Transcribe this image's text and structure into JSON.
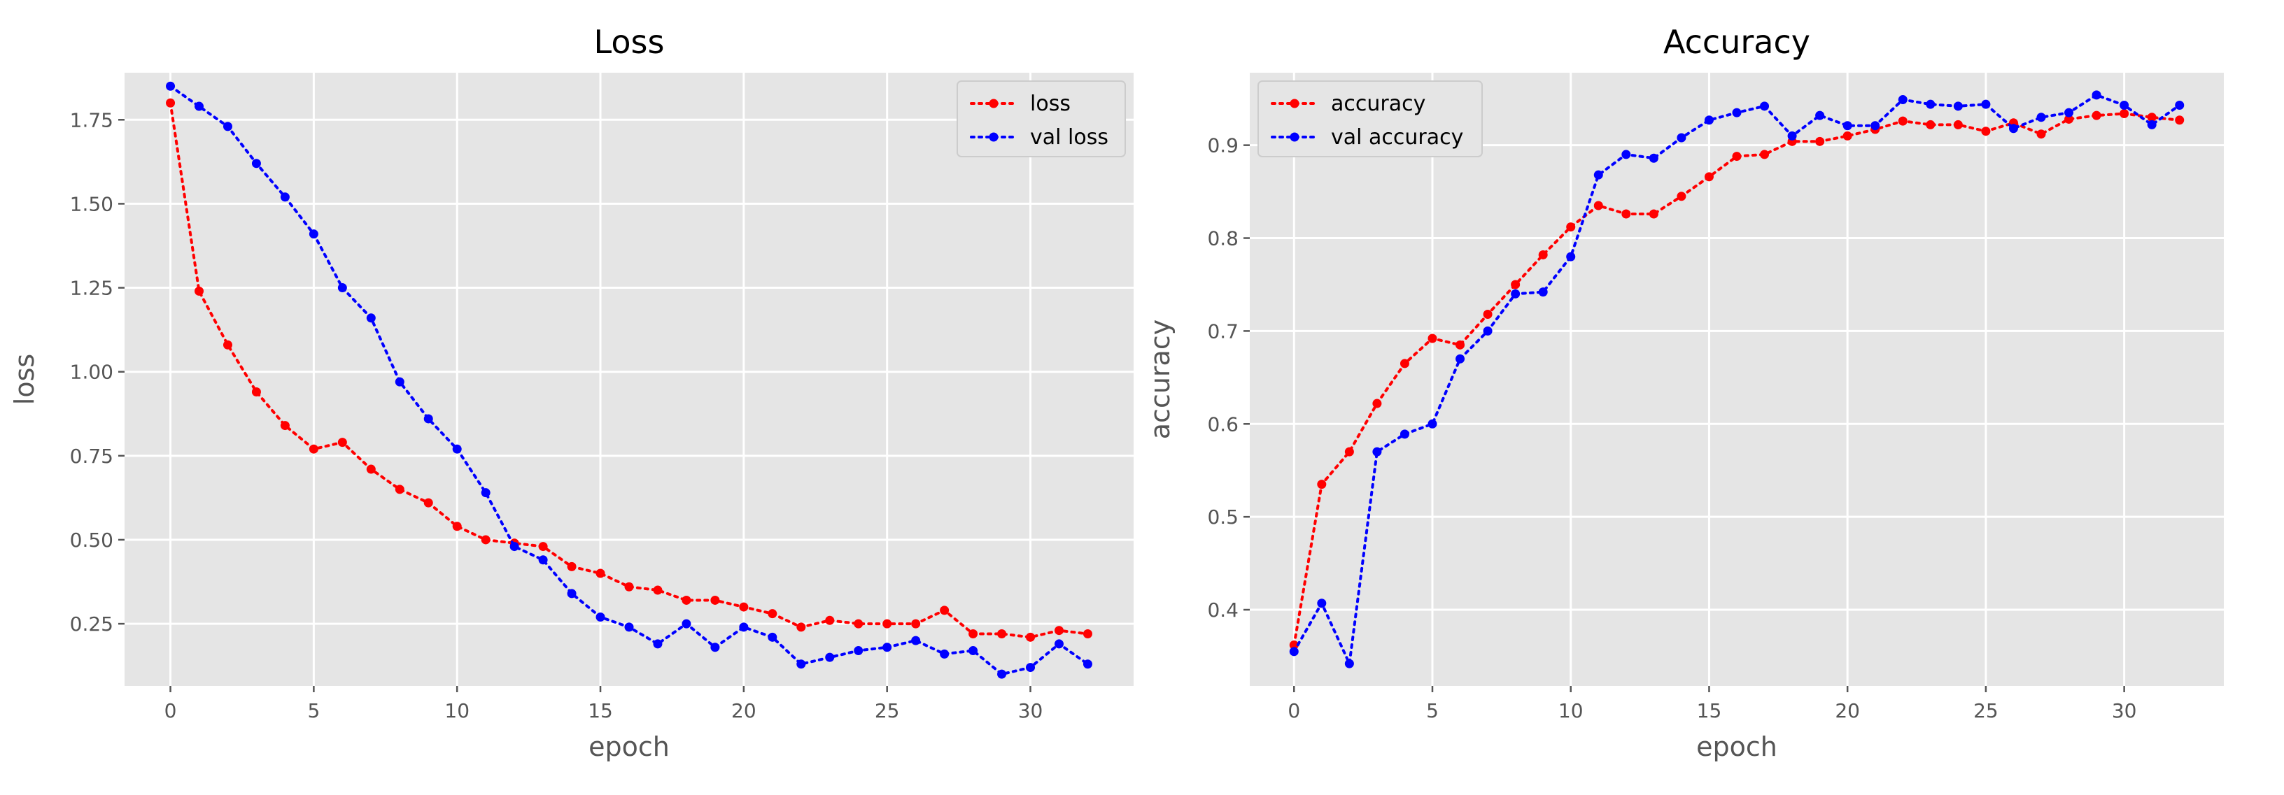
{
  "chart_data": [
    {
      "type": "line",
      "title": "Loss",
      "xlabel": "epoch",
      "ylabel": "loss",
      "xlim": [
        -1.6,
        33.6
      ],
      "ylim": [
        0.065,
        1.89
      ],
      "xticks": [
        0,
        5,
        10,
        15,
        20,
        25,
        30
      ],
      "xtick_labels": [
        "0",
        "5",
        "10",
        "15",
        "20",
        "25",
        "30"
      ],
      "yticks": [
        0.25,
        0.5,
        0.75,
        1.0,
        1.25,
        1.5,
        1.75
      ],
      "ytick_labels": [
        "0.25",
        "0.50",
        "0.75",
        "1.00",
        "1.25",
        "1.50",
        "1.75"
      ],
      "grid": true,
      "legend_position": "top-right",
      "x": [
        0,
        1,
        2,
        3,
        4,
        5,
        6,
        7,
        8,
        9,
        10,
        11,
        12,
        13,
        14,
        15,
        16,
        17,
        18,
        19,
        20,
        21,
        22,
        23,
        24,
        25,
        26,
        27,
        28,
        29,
        30,
        31,
        32
      ],
      "series": [
        {
          "name": "loss",
          "color": "#ff0000",
          "values": [
            1.8,
            1.24,
            1.08,
            0.94,
            0.84,
            0.77,
            0.79,
            0.71,
            0.65,
            0.61,
            0.54,
            0.5,
            0.49,
            0.48,
            0.42,
            0.4,
            0.36,
            0.35,
            0.32,
            0.32,
            0.3,
            0.28,
            0.24,
            0.26,
            0.25,
            0.25,
            0.25,
            0.29,
            0.22,
            0.22,
            0.21,
            0.23,
            0.22
          ]
        },
        {
          "name": "val loss",
          "color": "#0000ff",
          "values": [
            1.85,
            1.79,
            1.73,
            1.62,
            1.52,
            1.41,
            1.25,
            1.16,
            0.97,
            0.86,
            0.77,
            0.64,
            0.48,
            0.44,
            0.34,
            0.27,
            0.24,
            0.19,
            0.25,
            0.18,
            0.24,
            0.21,
            0.13,
            0.15,
            0.17,
            0.18,
            0.2,
            0.16,
            0.17,
            0.1,
            0.12,
            0.19,
            0.13
          ]
        }
      ]
    },
    {
      "type": "line",
      "title": "Accuracy",
      "xlabel": "epoch",
      "ylabel": "accuracy",
      "xlim": [
        -1.6,
        33.6
      ],
      "ylim": [
        0.318,
        0.978
      ],
      "xticks": [
        0,
        5,
        10,
        15,
        20,
        25,
        30
      ],
      "xtick_labels": [
        "0",
        "5",
        "10",
        "15",
        "20",
        "25",
        "30"
      ],
      "yticks": [
        0.4,
        0.5,
        0.6,
        0.7,
        0.8,
        0.9
      ],
      "ytick_labels": [
        "0.4",
        "0.5",
        "0.6",
        "0.7",
        "0.8",
        "0.9"
      ],
      "grid": true,
      "legend_position": "top-left",
      "x": [
        0,
        1,
        2,
        3,
        4,
        5,
        6,
        7,
        8,
        9,
        10,
        11,
        12,
        13,
        14,
        15,
        16,
        17,
        18,
        19,
        20,
        21,
        22,
        23,
        24,
        25,
        26,
        27,
        28,
        29,
        30,
        31,
        32
      ],
      "series": [
        {
          "name": "accuracy",
          "color": "#ff0000",
          "values": [
            0.362,
            0.535,
            0.57,
            0.622,
            0.665,
            0.692,
            0.685,
            0.718,
            0.75,
            0.782,
            0.812,
            0.835,
            0.826,
            0.826,
            0.845,
            0.866,
            0.888,
            0.89,
            0.904,
            0.904,
            0.91,
            0.917,
            0.926,
            0.922,
            0.922,
            0.915,
            0.924,
            0.912,
            0.928,
            0.932,
            0.934,
            0.93,
            0.927
          ]
        },
        {
          "name": "val accuracy",
          "color": "#0000ff",
          "values": [
            0.355,
            0.407,
            0.342,
            0.57,
            0.589,
            0.6,
            0.67,
            0.7,
            0.74,
            0.742,
            0.78,
            0.868,
            0.89,
            0.886,
            0.908,
            0.927,
            0.935,
            0.942,
            0.91,
            0.932,
            0.921,
            0.921,
            0.949,
            0.944,
            0.942,
            0.944,
            0.918,
            0.93,
            0.935,
            0.954,
            0.943,
            0.922,
            0.943
          ]
        }
      ]
    }
  ]
}
